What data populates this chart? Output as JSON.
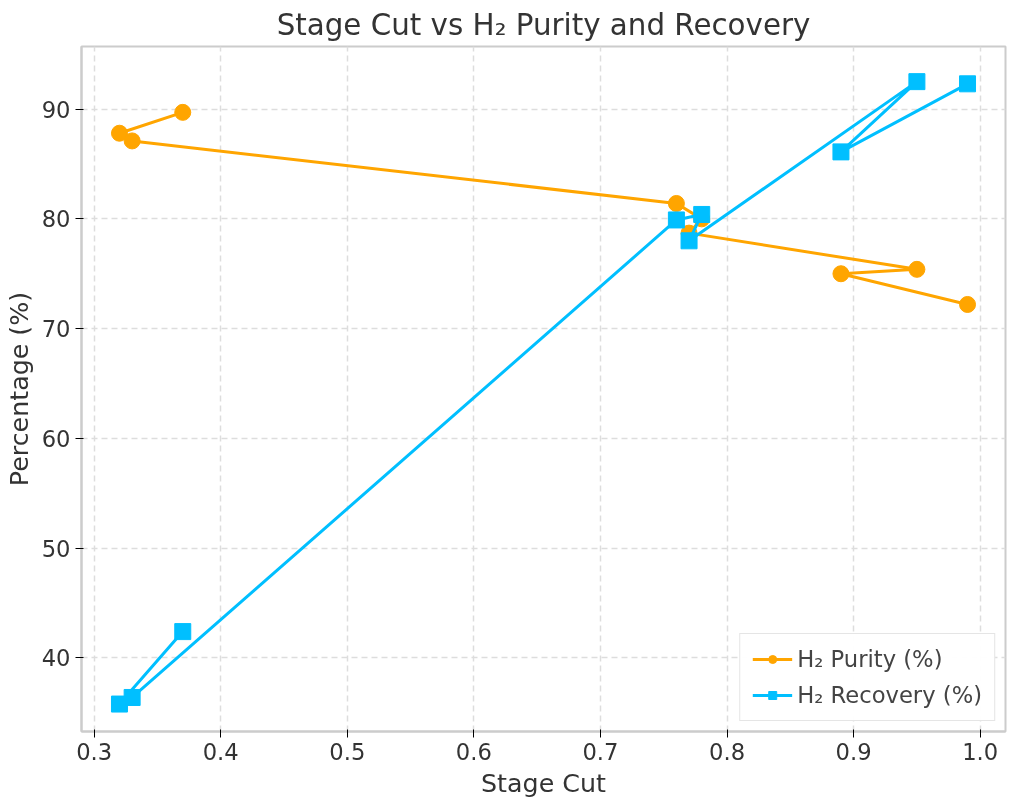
{
  "chart_data": {
    "type": "line",
    "title": "Stage Cut vs H₂ Purity and Recovery",
    "xlabel": "Stage Cut",
    "ylabel": "Percentage (%)",
    "x": [
      0.37,
      0.32,
      0.33,
      0.76,
      0.78,
      0.77,
      0.95,
      0.89,
      0.99
    ],
    "series": [
      {
        "name": "H₂ Purity (%)",
        "color": "#ffa500",
        "marker": "circle",
        "values": [
          89.7,
          87.8,
          87.1,
          81.4,
          80.0,
          78.7,
          75.4,
          75.0,
          72.2
        ]
      },
      {
        "name": "H₂ Recovery (%)",
        "color": "#00bfff",
        "marker": "square",
        "values": [
          42.4,
          35.8,
          36.4,
          79.9,
          80.4,
          78.0,
          92.5,
          86.1,
          92.3
        ]
      }
    ],
    "xlim": [
      0.29,
      1.02
    ],
    "ylim": [
      33.3,
      95.7
    ],
    "xticks": [
      {
        "value": 0.3,
        "label": "0.3"
      },
      {
        "value": 0.4,
        "label": "0.4"
      },
      {
        "value": 0.5,
        "label": "0.5"
      },
      {
        "value": 0.6,
        "label": "0.6"
      },
      {
        "value": 0.7,
        "label": "0.7"
      },
      {
        "value": 0.8,
        "label": "0.8"
      },
      {
        "value": 0.9,
        "label": "0.9"
      },
      {
        "value": 1.0,
        "label": "1.0"
      }
    ],
    "yticks": [
      40,
      50,
      60,
      70,
      80,
      90
    ],
    "grid": true,
    "legend": "bottom right",
    "line_style": "solid"
  }
}
